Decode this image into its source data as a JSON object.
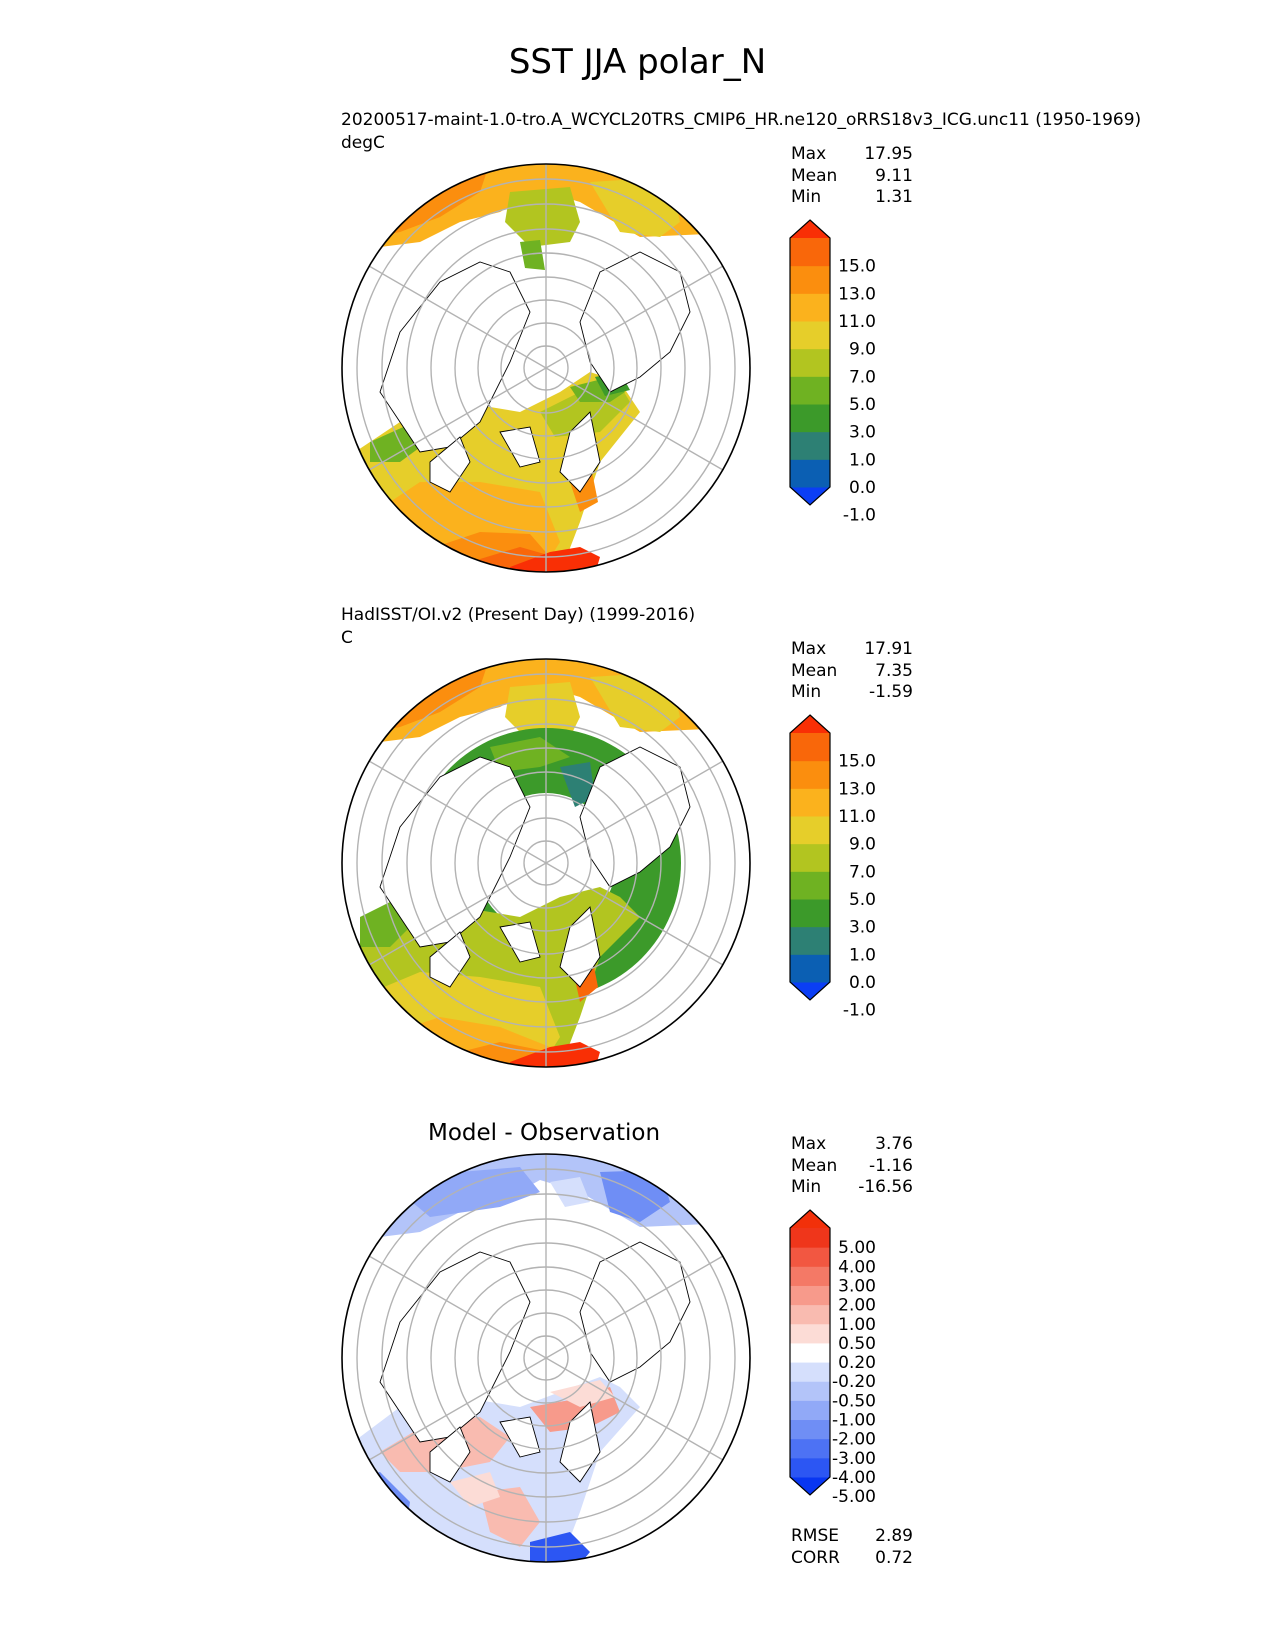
{
  "title": "SST JJA polar_N",
  "panels": [
    {
      "id": "test",
      "subtitle": "20200517-maint-1.0-tro.A_WCYCL20TRS_CMIP6_HR.ne120_oRRS18v3_ICG.unc11 (1950-1969)",
      "units": "degC",
      "stats": [
        {
          "label": "Max",
          "value": "17.95"
        },
        {
          "label": "Mean",
          "value": "9.11"
        },
        {
          "label": "Min",
          "value": "1.31"
        }
      ],
      "colorbar": {
        "colors": [
          "#0b3ef5",
          "#0b5fb3",
          "#2d8074",
          "#3c9a2a",
          "#6fb222",
          "#b2c520",
          "#e6ce2a",
          "#fbb21d",
          "#fb8e0e",
          "#f9670a",
          "#f92f05"
        ],
        "tick_labels": [
          "15.0",
          "13.0",
          "11.0",
          "9.0",
          "7.0",
          "5.0",
          "3.0",
          "1.0",
          "0.0",
          "-1.0"
        ]
      }
    },
    {
      "id": "reference",
      "subtitle": "HadISST/OI.v2 (Present Day) (1999-2016)",
      "units": "C",
      "stats": [
        {
          "label": "Max",
          "value": "17.91"
        },
        {
          "label": "Mean",
          "value": "7.35"
        },
        {
          "label": "Min",
          "value": "-1.59"
        }
      ],
      "colorbar": {
        "colors": [
          "#0b3ef5",
          "#0b5fb3",
          "#2d8074",
          "#3c9a2a",
          "#6fb222",
          "#b2c520",
          "#e6ce2a",
          "#fbb21d",
          "#fb8e0e",
          "#f9670a",
          "#f92f05"
        ],
        "tick_labels": [
          "15.0",
          "13.0",
          "11.0",
          "9.0",
          "7.0",
          "5.0",
          "3.0",
          "1.0",
          "0.0",
          "-1.0"
        ]
      }
    },
    {
      "id": "diff",
      "title": "Model - Observation",
      "stats": [
        {
          "label": "Max",
          "value": "3.76"
        },
        {
          "label": "Mean",
          "value": "-1.16"
        },
        {
          "label": "Min",
          "value": "-16.56"
        }
      ],
      "colorbar": {
        "colors": [
          "#0836f2",
          "#2c56f3",
          "#4d72f4",
          "#6f8ef5",
          "#91a9f7",
          "#b3c4f9",
          "#d5dffc",
          "#ffffff",
          "#fcdcd6",
          "#f9bbb0",
          "#f79a8b",
          "#f47966",
          "#f25741",
          "#ef361b",
          "#f2300a"
        ],
        "tick_labels": [
          "5.00",
          "4.00",
          "3.00",
          "2.00",
          "1.00",
          "0.50",
          "0.20",
          "-0.20",
          "-0.50",
          "-1.00",
          "-2.00",
          "-3.00",
          "-4.00",
          "-5.00"
        ]
      },
      "metrics": [
        {
          "label": "RMSE",
          "value": "2.89"
        },
        {
          "label": "CORR",
          "value": "0.72"
        }
      ]
    }
  ],
  "chart_data": [
    {
      "type": "heatmap",
      "projection": "north polar stereographic",
      "subtitle": "20200517-maint-1.0-tro.A_WCYCL20TRS_CMIP6_HR.ne120_oRRS18v3_ICG.unc11 (1950-1969)",
      "units": "degC",
      "levels": [
        -1.0,
        0.0,
        1.0,
        3.0,
        5.0,
        7.0,
        9.0,
        11.0,
        13.0,
        15.0
      ],
      "max": 17.95,
      "mean": 9.11,
      "min": 1.31
    },
    {
      "type": "heatmap",
      "projection": "north polar stereographic",
      "subtitle": "HadISST/OI.v2 (Present Day) (1999-2016)",
      "units": "C",
      "levels": [
        -1.0,
        0.0,
        1.0,
        3.0,
        5.0,
        7.0,
        9.0,
        11.0,
        13.0,
        15.0
      ],
      "max": 17.91,
      "mean": 7.35,
      "min": -1.59
    },
    {
      "type": "heatmap",
      "projection": "north polar stereographic",
      "title": "Model - Observation",
      "levels": [
        -5.0,
        -4.0,
        -3.0,
        -2.0,
        -1.0,
        -0.5,
        -0.2,
        0.2,
        0.5,
        1.0,
        2.0,
        3.0,
        4.0,
        5.0
      ],
      "max": 3.76,
      "mean": -1.16,
      "min": -16.56,
      "rmse": 2.89,
      "corr": 0.72
    }
  ]
}
